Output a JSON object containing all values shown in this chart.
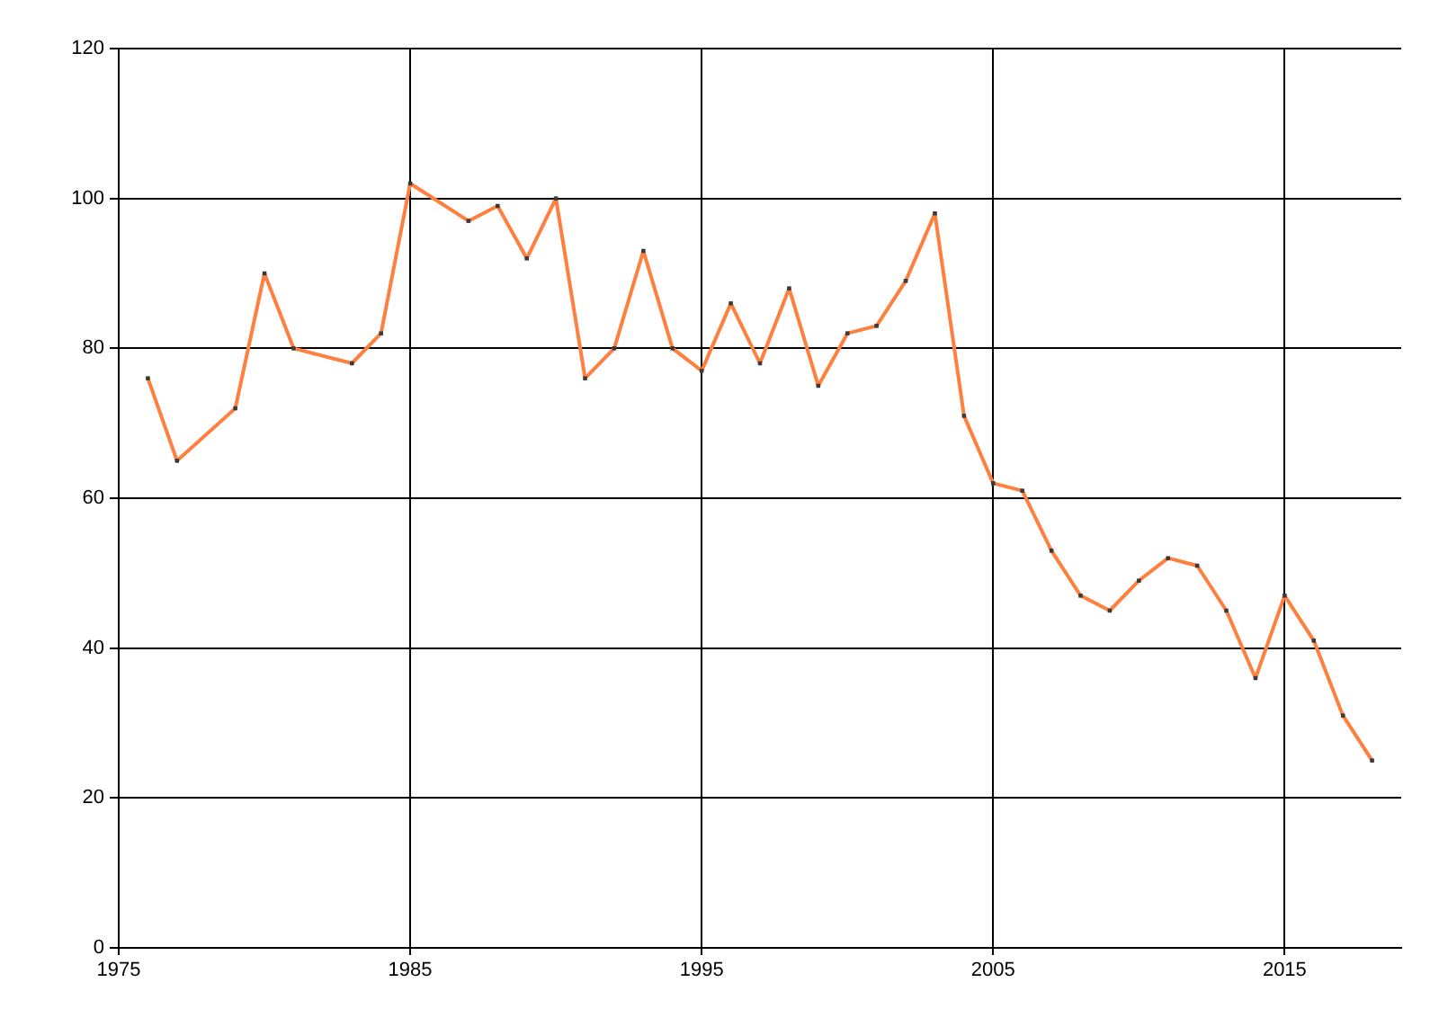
{
  "chart_data": {
    "type": "line",
    "x": [
      1976,
      1977,
      1979,
      1980,
      1981,
      1983,
      1984,
      1985,
      1987,
      1988,
      1989,
      1990,
      1991,
      1992,
      1993,
      1994,
      1995,
      1996,
      1997,
      1998,
      1999,
      2000,
      2001,
      2002,
      2003,
      2004,
      2005,
      2006,
      2007,
      2008,
      2009,
      2010,
      2011,
      2012,
      2013,
      2014,
      2015,
      2016,
      2017,
      2018
    ],
    "values": [
      76,
      65,
      72,
      90,
      80,
      78,
      82,
      102,
      97,
      99,
      92,
      100,
      76,
      80,
      93,
      80,
      77,
      86,
      78,
      88,
      75,
      82,
      83,
      89,
      98,
      71,
      62,
      61,
      53,
      47,
      45,
      49,
      52,
      51,
      45,
      36,
      47,
      41,
      31,
      25
    ],
    "color": "#ff7f3f",
    "xlim": [
      1975,
      2019
    ],
    "xticks": [
      1975,
      1985,
      1995,
      2005,
      2015
    ],
    "ylim": [
      0,
      120
    ],
    "yticks": [
      0,
      20,
      40,
      60,
      80,
      100,
      120
    ],
    "grid": true,
    "marker": "square",
    "line_style": "solid"
  }
}
